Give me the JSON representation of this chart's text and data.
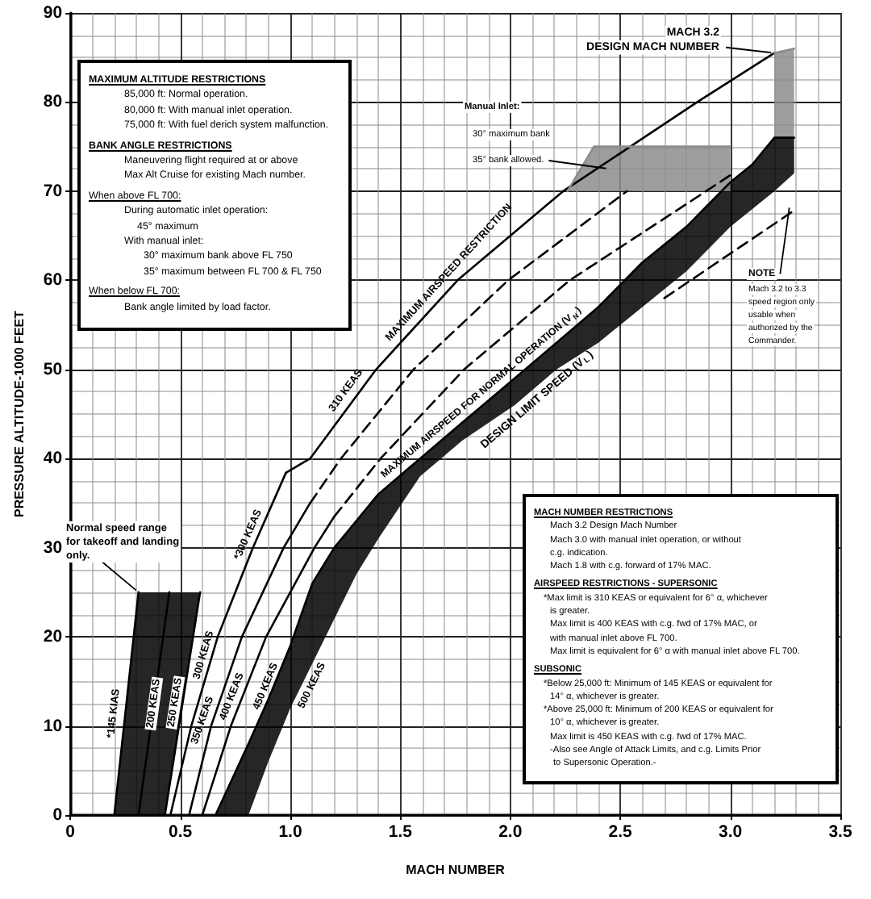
{
  "chart_data": {
    "type": "line",
    "xlabel": "MACH NUMBER",
    "ylabel": "PRESSURE ALTITUDE-1000 FEET",
    "xlim": [
      0,
      3.5
    ],
    "xticks": [
      0,
      0.5,
      {
        "value": 1,
        "label": "1.0"
      },
      1.5,
      {
        "value": 2,
        "label": "2.0"
      },
      2.5,
      {
        "value": 3,
        "label": "3.0"
      },
      3.5
    ],
    "ylim": [
      0,
      90
    ],
    "yticks": [
      0,
      10,
      20,
      30,
      40,
      50,
      60,
      70,
      80,
      90
    ],
    "grid": true,
    "marker": "none",
    "line_style": "solid",
    "series": [
      {
        "name": "*145 KIAS",
        "color": "#000000",
        "x": [
          0.2,
          0.31,
          0.43,
          0.59
        ],
        "values": [
          0,
          25,
          null,
          null
        ],
        "upper": [
          0,
          25,
          25,
          25
        ],
        "lower": [
          0,
          0,
          0,
          25
        ]
      },
      {
        "name": "200 KEAS",
        "color": "#000000",
        "x": [
          0.31,
          0.45
        ],
        "values": [
          0,
          25
        ]
      },
      {
        "name": "250 KEAS",
        "color": "#000000",
        "x": [
          0.43,
          0.59
        ],
        "values": [
          0,
          25
        ]
      },
      {
        "name": "300 KEAS",
        "color": "#000000",
        "x": [
          0.455,
          0.55,
          0.67,
          0.83,
          0.98
        ],
        "values": [
          0,
          10,
          20,
          30,
          38.4
        ]
      },
      {
        "name": "350 KEAS",
        "color": "#000000",
        "x": [
          0.54,
          0.64,
          0.78,
          0.97,
          1.09
        ],
        "values": [
          0,
          10,
          20,
          30,
          35
        ]
      },
      {
        "color": "#000000",
        "line_style": "dashed",
        "x": [
          1.09,
          1.23,
          1.56,
          1.99,
          2.53
        ],
        "values": [
          35,
          40,
          50,
          60,
          70
        ]
      },
      {
        "name": "400 KEAS",
        "color": "#000000",
        "x": [
          0.6,
          0.73,
          0.89,
          1.11,
          1.2
        ],
        "values": [
          0,
          10,
          20,
          30,
          33.5
        ]
      },
      {
        "color": "#000000",
        "line_style": "dashed",
        "x": [
          1.2,
          1.41,
          1.79,
          2.27,
          2.89,
          3.0
        ],
        "values": [
          33.5,
          40,
          50,
          60,
          70,
          71.8
        ]
      },
      {
        "name": "310 KEAS",
        "color": "#000000",
        "x": [
          0.98,
          1.09,
          1.39,
          1.76,
          2.24,
          2.85,
          3.2
        ],
        "values": [
          38.4,
          40,
          50,
          60,
          70,
          80,
          85.5
        ]
      },
      {
        "name": "MAXIMUM AIRSPEED FOR NORMAL OPERATION (V$_{N}$)",
        "color": "#000000",
        "x": [
          0.66,
          0.81,
          0.9,
          1.0,
          1.1,
          1.2,
          1.3,
          1.4,
          1.59,
          1.78,
          2.02,
          2.21,
          2.4,
          2.6,
          2.8,
          3.0,
          3.1,
          3.2,
          3.29
        ],
        "values": [
          0,
          8,
          13,
          19,
          26,
          30,
          33,
          36,
          40,
          44,
          49,
          53,
          57,
          62,
          66,
          71,
          73,
          76,
          76
        ],
        "upper": [
          0,
          8,
          13,
          19,
          26,
          30,
          33,
          36,
          40,
          44,
          49,
          53,
          57,
          62,
          66,
          71,
          73,
          76,
          76
        ],
        "lower": [
          0,
          0,
          6,
          12,
          17,
          22,
          27,
          31,
          38,
          42,
          46,
          50,
          53,
          57,
          61,
          66,
          68,
          70,
          72
        ]
      },
      {
        "color": "#000000",
        "line_style": "dashed",
        "x": [
          2.7,
          3.0,
          3.3
        ],
        "values": [
          58,
          63,
          68
        ]
      },
      {
        "color": "#8c8c8c",
        "x": [
          2.26,
          2.38,
          3.0
        ],
        "values": [
          70,
          75,
          75
        ],
        "upper": [
          70,
          75,
          75
        ],
        "lower": [
          70,
          70,
          70
        ]
      },
      {
        "color": "#8c8c8c",
        "x": [
          3.2,
          3.29
        ],
        "values": [
          85.5,
          86
        ],
        "upper": [
          85.5,
          86
        ],
        "lower": [
          76,
          76
        ]
      }
    ],
    "annotations": [
      "MAXIMUM ALTITUDE RESTRICTIONS",
      "85,000 ft:   Normal operation.",
      "80,000 ft:   With manual inlet operation.",
      "75,000 ft:   With fuel derich system malfunction.",
      "BANK ANGLE RESTRICTIONS",
      "Maneuvering flight required at or above",
      "Max Alt Cruise for existing Mach number.",
      "When above FL 700:",
      "During automatic inlet operation:",
      "45° maximum",
      "With manual inlet:",
      "30° maximum bank above FL 750",
      "35° maximum between FL 700 & FL 750",
      "When below FL 700:",
      "Bank angle limited by load factor.",
      "MACH NUMBER RESTRICTIONS",
      "Mach 3.2 Design Mach Number",
      "Mach 3.0 with manual inlet operation, or without",
      "c.g. indication.",
      "Mach 1.8 with c.g. forward of 17% MAC.",
      "AIRSPEED RESTRICTIONS - SUPERSONIC",
      "*Max limit is 310 KEAS or equivalent for 6° α, whichever",
      "is greater.",
      "Max limit is 400 KEAS with c.g. fwd of 17% MAC, or",
      "with manual inlet above FL 700.",
      "Max limit is equivalent for 6° α with manual inlet above FL 700.",
      "SUBSONIC",
      "*Below 25,000 ft: Minimum of 145 KEAS or equivalent for",
      "14° α, whichever is greater.",
      "*Above 25,000 ft: Minimum of 200 KEAS or equivalent for",
      "10° α, whichever is greater.",
      "Max limit is 450 KEAS with c.g. fwd of 17% MAC.",
      "-Also see Angle of Attack Limits, and c.g. Limits Prior",
      "to Supersonic Operation.-",
      {
        "text": "Normal speed range for takeoff and landing only.",
        "x": 0.31,
        "y": 25
      },
      "MACH 3.2",
      {
        "text": "DESIGN MACH NUMBER",
        "x": 3.2,
        "y": 85.5
      },
      "Manual Inlet:",
      "30° maximum bank",
      {
        "text": "35° bank allowed.",
        "x": 2.45,
        "y": 72.5
      },
      {
        "text": "MAXIMUM AIRSPEED RESTRICTION",
        "x": 1.76,
        "y": 60
      },
      {
        "text": "NOTE",
        "x": 3.27,
        "y": 68.5
      },
      "Mach 3.2 to 3.3",
      "speed region only",
      "usable when",
      "authorized by the",
      "Commander.",
      {
        "text": "DESIGN LIMIT SPEED (V$_{L}$)",
        "x": 2.09,
        "y": 47.5
      },
      {
        "text": "450 KEAS",
        "x": 0.93,
        "y": 14
      },
      {
        "text": "500 KEAS",
        "x": 1.06,
        "y": 15
      },
      {
        "text": "*300 KEAS",
        "x": 0.85,
        "y": 31
      }
    ]
  }
}
